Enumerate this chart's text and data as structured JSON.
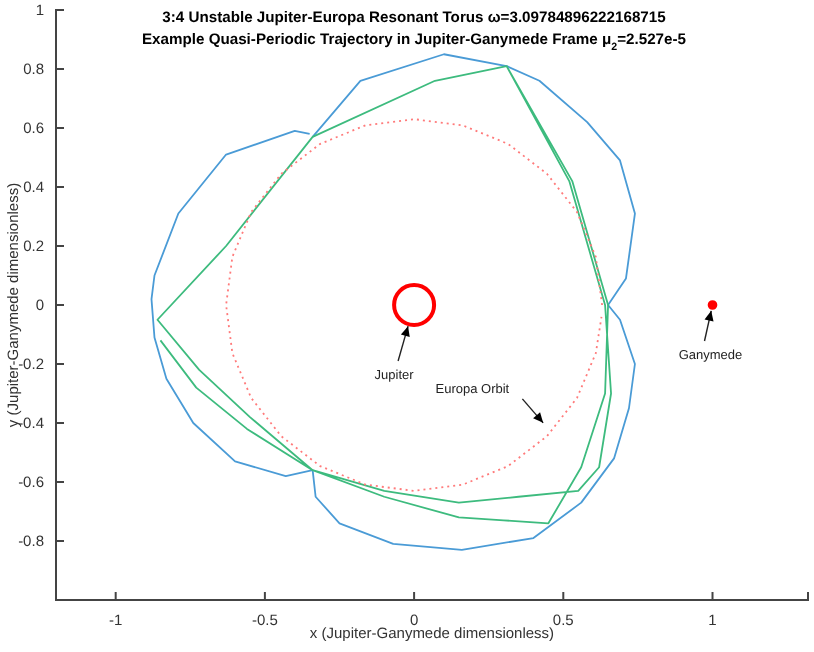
{
  "chart_data": {
    "type": "line",
    "title": "3:4 Unstable Jupiter-Europa Resonant Torus ω=3.09784896222168715",
    "subtitle": "Example Quasi-Periodic Trajectory in Jupiter-Ganymede Frame μ$_{2}$=2.527e-5",
    "xlabel": "x (Jupiter-Ganymede dimensionless)",
    "ylabel": "y (Jupiter-Ganymede dimensionless)",
    "xlim": [
      -1.2,
      1.32
    ],
    "ylim": [
      -1,
      1
    ],
    "xticks": [
      -1,
      -0.5,
      0,
      0.5,
      1
    ],
    "yticks": [
      -0.8,
      -0.6,
      -0.4,
      -0.2,
      0,
      0.2,
      0.4,
      0.6,
      0.8,
      1
    ],
    "series": [
      {
        "color": "#4a9bd6",
        "x": [
          -0.34,
          -0.18,
          0.1,
          0.31,
          0.42,
          0.58,
          0.69,
          0.74,
          0.71,
          0.65,
          0.69,
          0.74,
          0.72,
          0.67,
          0.56,
          0.4,
          0.16,
          -0.07,
          -0.25,
          -0.33,
          -0.34,
          -0.43,
          -0.6,
          -0.74,
          -0.83,
          -0.87,
          -0.88,
          -0.87,
          -0.79,
          -0.63,
          -0.4,
          -0.35
        ],
        "values": [
          0.57,
          0.76,
          0.85,
          0.81,
          0.76,
          0.62,
          0.49,
          0.31,
          0.09,
          0.0,
          -0.05,
          -0.2,
          -0.35,
          -0.52,
          -0.67,
          -0.79,
          -0.83,
          -0.81,
          -0.74,
          -0.65,
          -0.56,
          -0.58,
          -0.53,
          -0.4,
          -0.25,
          -0.11,
          0.02,
          0.1,
          0.31,
          0.51,
          0.59,
          0.58
        ]
      },
      {
        "color": "#3dbb7e",
        "x": [
          0.31,
          0.52,
          0.64,
          0.66,
          0.62,
          0.55,
          0.35,
          0.15,
          -0.1,
          -0.34,
          -0.55,
          -0.72,
          -0.86,
          -0.63,
          -0.34,
          0.07,
          0.31,
          0.53,
          0.65,
          0.64,
          0.56,
          0.45,
          0.3,
          0.15,
          -0.1,
          -0.34,
          -0.56,
          -0.73,
          -0.85
        ],
        "values": [
          0.81,
          0.42,
          0.0,
          -0.3,
          -0.55,
          -0.63,
          -0.65,
          -0.67,
          -0.63,
          -0.56,
          -0.38,
          -0.22,
          -0.05,
          0.2,
          0.57,
          0.76,
          0.81,
          0.42,
          0.0,
          -0.3,
          -0.55,
          -0.74,
          -0.73,
          -0.72,
          -0.65,
          -0.56,
          -0.42,
          -0.28,
          -0.12
        ]
      },
      {
        "color": "#ff7a7a",
        "line_style": "dotted",
        "x": [
          0.63,
          0.609,
          0.546,
          0.445,
          0.315,
          0.163,
          0,
          -0.163,
          -0.315,
          -0.445,
          -0.546,
          -0.609,
          -0.63,
          -0.609,
          -0.546,
          -0.445,
          -0.315,
          -0.163,
          0,
          0.163,
          0.315,
          0.445,
          0.546,
          0.609,
          0.628
        ],
        "values": [
          0,
          0.163,
          0.315,
          0.445,
          0.546,
          0.609,
          0.63,
          0.609,
          0.546,
          0.445,
          0.315,
          0.163,
          0,
          -0.163,
          -0.315,
          -0.445,
          -0.546,
          -0.609,
          -0.63,
          -0.609,
          -0.546,
          -0.445,
          -0.315,
          -0.163,
          -0.04
        ]
      },
      {
        "type": "bubble",
        "color": "#ff0000",
        "x": [
          0,
          1
        ],
        "values": [
          0,
          0
        ],
        "sizes": [
          1,
          0.02
        ]
      }
    ],
    "annotations": [
      "Jupiter",
      {
        "text": "Europa Orbit",
        "x": 0.45,
        "y": -0.42
      },
      {
        "text": "Ganymede",
        "x": 1,
        "y": 0
      }
    ]
  }
}
